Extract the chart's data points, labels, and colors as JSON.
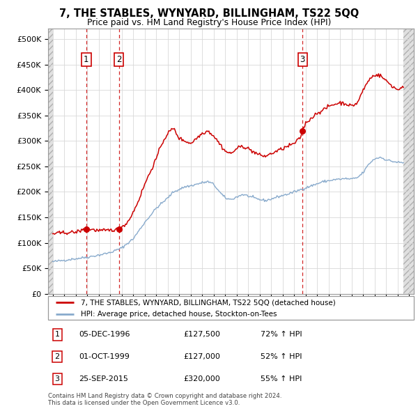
{
  "title": "7, THE STABLES, WYNYARD, BILLINGHAM, TS22 5QQ",
  "subtitle": "Price paid vs. HM Land Registry's House Price Index (HPI)",
  "legend_line1": "7, THE STABLES, WYNYARD, BILLINGHAM, TS22 5QQ (detached house)",
  "legend_line2": "HPI: Average price, detached house, Stockton-on-Tees",
  "price_color": "#cc0000",
  "hpi_color": "#88aacc",
  "transactions": [
    {
      "t": 1996.92,
      "price": 127500,
      "label": "1"
    },
    {
      "t": 1999.75,
      "price": 127000,
      "label": "2"
    },
    {
      "t": 2015.72,
      "price": 320000,
      "label": "3"
    }
  ],
  "transaction_table": [
    {
      "num": "1",
      "date": "05-DEC-1996",
      "price": "£127,500",
      "change": "72% ↑ HPI"
    },
    {
      "num": "2",
      "date": "01-OCT-1999",
      "price": "£127,000",
      "change": "52% ↑ HPI"
    },
    {
      "num": "3",
      "date": "25-SEP-2015",
      "price": "£320,000",
      "change": "55% ↑ HPI"
    }
  ],
  "footer": "Contains HM Land Registry data © Crown copyright and database right 2024.\nThis data is licensed under the Open Government Licence v3.0.",
  "ylim": [
    0,
    520000
  ],
  "yticks": [
    0,
    50000,
    100000,
    150000,
    200000,
    250000,
    300000,
    350000,
    400000,
    450000,
    500000
  ],
  "xmin": 1993.6,
  "xmax": 2025.4,
  "hpi_key_points": [
    [
      1994.0,
      63000
    ],
    [
      1995.0,
      66000
    ],
    [
      1996.0,
      69000
    ],
    [
      1997.0,
      72000
    ],
    [
      1998.0,
      76000
    ],
    [
      1999.0,
      81000
    ],
    [
      2000.0,
      90000
    ],
    [
      2001.0,
      108000
    ],
    [
      2002.0,
      140000
    ],
    [
      2003.0,
      168000
    ],
    [
      2004.0,
      188000
    ],
    [
      2004.5,
      200000
    ],
    [
      2005.0,
      205000
    ],
    [
      2005.5,
      210000
    ],
    [
      2006.0,
      212000
    ],
    [
      2006.5,
      215000
    ],
    [
      2007.0,
      218000
    ],
    [
      2007.5,
      220000
    ],
    [
      2008.0,
      215000
    ],
    [
      2008.5,
      200000
    ],
    [
      2009.0,
      188000
    ],
    [
      2009.5,
      185000
    ],
    [
      2010.0,
      190000
    ],
    [
      2010.5,
      195000
    ],
    [
      2011.0,
      192000
    ],
    [
      2011.5,
      188000
    ],
    [
      2012.0,
      185000
    ],
    [
      2012.5,
      183000
    ],
    [
      2013.0,
      186000
    ],
    [
      2013.5,
      190000
    ],
    [
      2014.0,
      193000
    ],
    [
      2014.5,
      196000
    ],
    [
      2015.0,
      200000
    ],
    [
      2015.5,
      204000
    ],
    [
      2016.0,
      208000
    ],
    [
      2016.5,
      212000
    ],
    [
      2017.0,
      216000
    ],
    [
      2017.5,
      220000
    ],
    [
      2018.0,
      222000
    ],
    [
      2018.5,
      224000
    ],
    [
      2019.0,
      225000
    ],
    [
      2019.5,
      226000
    ],
    [
      2020.0,
      225000
    ],
    [
      2020.5,
      228000
    ],
    [
      2021.0,
      238000
    ],
    [
      2021.5,
      255000
    ],
    [
      2022.0,
      265000
    ],
    [
      2022.5,
      268000
    ],
    [
      2023.0,
      263000
    ],
    [
      2023.5,
      260000
    ],
    [
      2024.0,
      258000
    ],
    [
      2024.5,
      257000
    ]
  ],
  "price_key_points": [
    [
      1994.0,
      118000
    ],
    [
      1995.0,
      120000
    ],
    [
      1996.0,
      121000
    ],
    [
      1996.92,
      127500
    ],
    [
      1997.5,
      126000
    ],
    [
      1998.0,
      124000
    ],
    [
      1998.5,
      124000
    ],
    [
      1999.0,
      125000
    ],
    [
      1999.75,
      127000
    ],
    [
      2000.5,
      140000
    ],
    [
      2001.0,
      160000
    ],
    [
      2001.5,
      185000
    ],
    [
      2002.0,
      215000
    ],
    [
      2002.5,
      240000
    ],
    [
      2003.0,
      265000
    ],
    [
      2003.5,
      295000
    ],
    [
      2004.0,
      315000
    ],
    [
      2004.5,
      325000
    ],
    [
      2005.0,
      305000
    ],
    [
      2005.5,
      300000
    ],
    [
      2006.0,
      295000
    ],
    [
      2006.5,
      305000
    ],
    [
      2007.0,
      315000
    ],
    [
      2007.5,
      320000
    ],
    [
      2008.0,
      310000
    ],
    [
      2008.5,
      295000
    ],
    [
      2009.0,
      280000
    ],
    [
      2009.5,
      275000
    ],
    [
      2010.0,
      285000
    ],
    [
      2010.5,
      290000
    ],
    [
      2011.0,
      285000
    ],
    [
      2011.5,
      278000
    ],
    [
      2012.0,
      272000
    ],
    [
      2012.5,
      270000
    ],
    [
      2013.0,
      275000
    ],
    [
      2013.5,
      280000
    ],
    [
      2014.0,
      285000
    ],
    [
      2014.5,
      290000
    ],
    [
      2015.0,
      295000
    ],
    [
      2015.5,
      305000
    ],
    [
      2015.72,
      320000
    ],
    [
      2016.0,
      335000
    ],
    [
      2016.5,
      345000
    ],
    [
      2017.0,
      355000
    ],
    [
      2017.5,
      360000
    ],
    [
      2018.0,
      368000
    ],
    [
      2018.5,
      372000
    ],
    [
      2019.0,
      375000
    ],
    [
      2019.5,
      373000
    ],
    [
      2020.0,
      368000
    ],
    [
      2020.5,
      375000
    ],
    [
      2021.0,
      400000
    ],
    [
      2021.5,
      420000
    ],
    [
      2022.0,
      430000
    ],
    [
      2022.5,
      428000
    ],
    [
      2023.0,
      418000
    ],
    [
      2023.5,
      408000
    ],
    [
      2024.0,
      400000
    ],
    [
      2024.5,
      408000
    ]
  ]
}
